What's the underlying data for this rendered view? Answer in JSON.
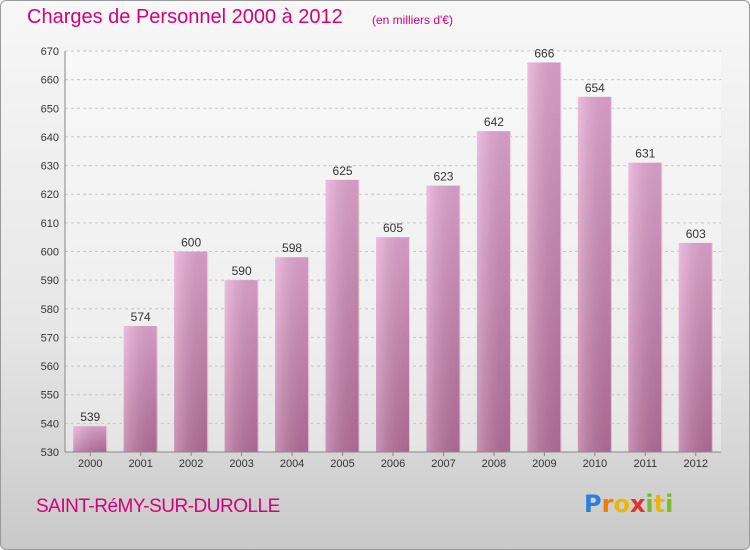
{
  "header": {
    "title": "Charges de Personnel 2000 à 2012",
    "unit": "(en milliers d'€)"
  },
  "footer": {
    "town": "SAINT-RéMY-SUR-DUROLLE",
    "logo_letters": [
      "P",
      "r",
      "o",
      "x",
      "i",
      "t",
      "i"
    ],
    "logo_colors": [
      "#2c7fd6",
      "#f07d00",
      "#e8b800",
      "#e8302a",
      "#7cba2d",
      "#e8b800",
      "#7cba2d"
    ]
  },
  "colors": {
    "bar_light": "#e6a8d4",
    "bar_dark": "#b8709c",
    "title": "#d4007a"
  },
  "chart_data": {
    "type": "bar",
    "title": "Charges de Personnel 2000 à 2012",
    "subtitle": "(en milliers d'€)",
    "categories": [
      "2000",
      "2001",
      "2002",
      "2003",
      "2004",
      "2005",
      "2006",
      "2007",
      "2008",
      "2009",
      "2010",
      "2011",
      "2012"
    ],
    "values": [
      539,
      574,
      600,
      590,
      598,
      625,
      605,
      623,
      642,
      666,
      654,
      631,
      603
    ],
    "ylim": [
      530,
      670
    ],
    "yticks": [
      530,
      540,
      550,
      560,
      570,
      580,
      590,
      600,
      610,
      620,
      630,
      640,
      650,
      660,
      670
    ],
    "grid": true,
    "xlabel": "",
    "ylabel": ""
  }
}
